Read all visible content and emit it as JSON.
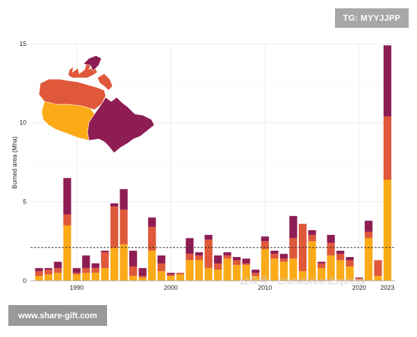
{
  "watermarks": {
    "tg": "TG: MYYJJPP",
    "site": "www.share-gift.com",
    "overlay": "公众号 · ChinaGreenExpress"
  },
  "colors": {
    "bottom": "#fbab18",
    "middle": "#e0583a",
    "top": "#8e1d54",
    "map_east": "#8e1d54",
    "map_middle": "#e0583a",
    "map_west": "#fbab18",
    "grid": "#ececec",
    "reference_line": "#333333"
  },
  "chart_data": {
    "type": "bar",
    "stacked": true,
    "title": "",
    "xlabel": "",
    "ylabel": "Burned area (Mha)",
    "ylim": [
      0,
      15
    ],
    "y_ticks": [
      "0",
      "5",
      "10",
      "15"
    ],
    "x_ticks": [
      "1990",
      "2000",
      "2010",
      "2020",
      "2023"
    ],
    "grid": true,
    "reference_line_y": 2.1,
    "categories": [
      "1986",
      "1987",
      "1988",
      "1989",
      "1990",
      "1991",
      "1992",
      "1993",
      "1994",
      "1995",
      "1996",
      "1997",
      "1998",
      "1999",
      "2000",
      "2001",
      "2002",
      "2003",
      "2004",
      "2005",
      "2006",
      "2007",
      "2008",
      "2009",
      "2010",
      "2011",
      "2012",
      "2013",
      "2014",
      "2015",
      "2016",
      "2017",
      "2018",
      "2019",
      "2020",
      "2021",
      "2022",
      "2023"
    ],
    "series": [
      {
        "values": [
          0.3,
          0.4,
          0.5,
          3.5,
          0.4,
          0.5,
          0.5,
          0.8,
          2.1,
          2.3,
          0.3,
          0.2,
          1.9,
          0.6,
          0.3,
          0.4,
          1.3,
          1.3,
          0.8,
          0.7,
          1.4,
          1.0,
          1.0,
          0.3,
          2.0,
          1.4,
          1.2,
          1.4,
          0.6,
          2.5,
          0.8,
          1.6,
          1.3,
          0.9,
          0.1,
          2.7,
          0.3,
          6.4
        ]
      },
      {
        "values": [
          0.3,
          0.3,
          0.3,
          0.7,
          0.1,
          0.3,
          0.3,
          1.0,
          2.6,
          2.2,
          0.6,
          0.1,
          1.5,
          0.5,
          0.1,
          0.1,
          0.4,
          0.3,
          1.8,
          0.4,
          0.2,
          0.3,
          0.1,
          0.2,
          0.5,
          0.3,
          0.2,
          1.3,
          3.0,
          0.4,
          0.3,
          0.8,
          0.4,
          0.4,
          0.05,
          0.4,
          1.0,
          4.0
        ]
      },
      {
        "values": [
          0.2,
          0.1,
          0.4,
          2.3,
          0.3,
          0.8,
          0.3,
          0.1,
          0.2,
          1.3,
          1.0,
          0.5,
          0.6,
          0.5,
          0.1,
          0.0,
          1.0,
          0.2,
          0.3,
          0.5,
          0.2,
          0.2,
          0.3,
          0.2,
          0.3,
          0.2,
          0.3,
          1.4,
          0.0,
          0.3,
          0.1,
          0.5,
          0.2,
          0.2,
          0.05,
          0.7,
          0.0,
          4.5
        ]
      }
    ]
  }
}
